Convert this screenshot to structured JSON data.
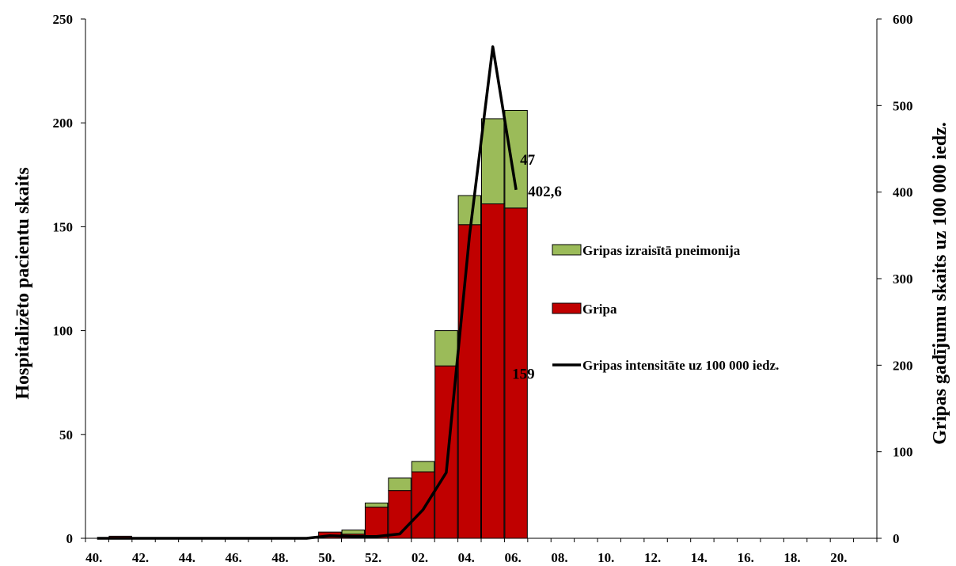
{
  "chart_data": {
    "type": "bar",
    "stacked": true,
    "categories": [
      "40.",
      "41.",
      "42.",
      "43.",
      "44.",
      "45.",
      "46.",
      "47.",
      "48.",
      "49.",
      "50.",
      "51.",
      "52.",
      "01.",
      "02.",
      "03.",
      "04.",
      "05.",
      "06.",
      "07.",
      "08.",
      "09.",
      "10.",
      "11.",
      "12.",
      "13.",
      "14.",
      "15.",
      "16.",
      "17.",
      "18.",
      "19.",
      "20.",
      "21."
    ],
    "x_tick_labels": [
      "40.",
      "42.",
      "44.",
      "46.",
      "48.",
      "50.",
      "52.",
      "02.",
      "04.",
      "06.",
      "08.",
      "10.",
      "12.",
      "14.",
      "16.",
      "18.",
      "20."
    ],
    "series": [
      {
        "name": "Gripa",
        "axis": "left",
        "kind": "bar",
        "color": "#c00000",
        "values": [
          0,
          1,
          0,
          0,
          0,
          0,
          0,
          0,
          0,
          0,
          3,
          2,
          15,
          23,
          32,
          83,
          151,
          161,
          159,
          null,
          null,
          null,
          null,
          null,
          null,
          null,
          null,
          null,
          null,
          null,
          null,
          null,
          null,
          null
        ]
      },
      {
        "name": "Gripas izraisītā pneimonija",
        "axis": "left",
        "kind": "bar",
        "color": "#9bbb59",
        "values": [
          0,
          0,
          0,
          0,
          0,
          0,
          0,
          0,
          0,
          0,
          0,
          2,
          2,
          6,
          5,
          17,
          14,
          41,
          47,
          null,
          null,
          null,
          null,
          null,
          null,
          null,
          null,
          null,
          null,
          null,
          null,
          null,
          null,
          null
        ]
      },
      {
        "name": "Gripas intensitāte uz 100 000 iedz.",
        "axis": "right",
        "kind": "line",
        "color": "#000000",
        "values": [
          0,
          0,
          0,
          0,
          0,
          0,
          0,
          0,
          0,
          0,
          3,
          2,
          2,
          5,
          33,
          76,
          350,
          568,
          402.6,
          null,
          null,
          null,
          null,
          null,
          null,
          null,
          null,
          null,
          null,
          null,
          null,
          null,
          null,
          null
        ]
      }
    ],
    "y_left": {
      "label": "Hospitalizēto pacientu skaits",
      "range": [
        0,
        250
      ],
      "ticks": [
        "0",
        "50",
        "100",
        "150",
        "200",
        "250"
      ]
    },
    "y_right": {
      "label": "Gripas gadījumu skaits uz 100 000 iedz.",
      "range": [
        0,
        600
      ],
      "ticks": [
        "0",
        "100",
        "200",
        "300",
        "400",
        "500",
        "600"
      ]
    },
    "annotations": {
      "pneumonia_last": "47",
      "flu_last": "159",
      "intensity_last": "402,6"
    },
    "legend": {
      "placement": "right",
      "entries": [
        "Gripas izraisītā pneimonija",
        "Gripa",
        "Gripas intensitāte uz 100 000 iedz."
      ]
    },
    "grid": false
  }
}
